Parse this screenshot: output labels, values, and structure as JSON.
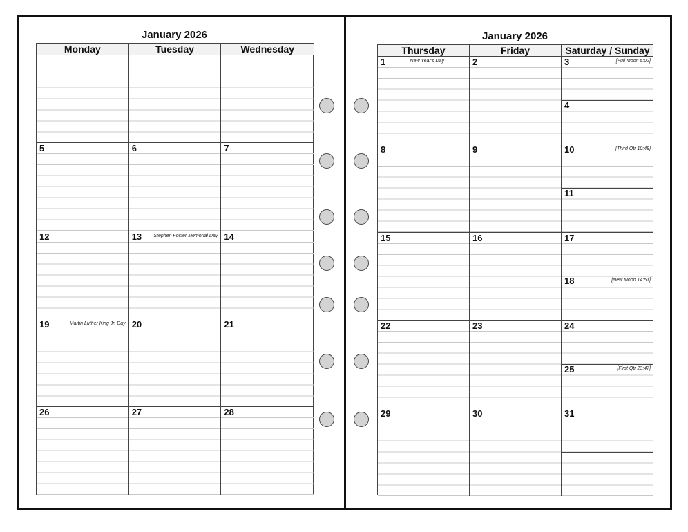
{
  "left_page": {
    "title": "January 2026",
    "days": [
      "Monday",
      "Tuesday",
      "Wednesday"
    ],
    "weeks": [
      [
        {
          "date": "",
          "note": ""
        },
        {
          "date": "",
          "note": ""
        },
        {
          "date": "",
          "note": ""
        }
      ],
      [
        {
          "date": "5",
          "note": ""
        },
        {
          "date": "6",
          "note": ""
        },
        {
          "date": "7",
          "note": ""
        }
      ],
      [
        {
          "date": "12",
          "note": ""
        },
        {
          "date": "13",
          "note": "Stephen Foster Memorial Day"
        },
        {
          "date": "14",
          "note": ""
        }
      ],
      [
        {
          "date": "19",
          "note": "Martin Luther King Jr. Day"
        },
        {
          "date": "20",
          "note": ""
        },
        {
          "date": "21",
          "note": ""
        }
      ],
      [
        {
          "date": "26",
          "note": ""
        },
        {
          "date": "27",
          "note": ""
        },
        {
          "date": "28",
          "note": ""
        }
      ]
    ]
  },
  "right_page": {
    "title": "January 2026",
    "days": [
      "Thursday",
      "Friday",
      "Saturday / Sunday"
    ],
    "weeks": [
      [
        {
          "date": "1",
          "note": "New Year's Day"
        },
        {
          "date": "2",
          "note": ""
        },
        {
          "date": "3",
          "note": "[Full Moon 5:02]",
          "sunday": {
            "date": "4",
            "note": ""
          }
        }
      ],
      [
        {
          "date": "8",
          "note": ""
        },
        {
          "date": "9",
          "note": ""
        },
        {
          "date": "10",
          "note": "[Third Qtr 10:48]",
          "sunday": {
            "date": "11",
            "note": ""
          }
        }
      ],
      [
        {
          "date": "15",
          "note": ""
        },
        {
          "date": "16",
          "note": ""
        },
        {
          "date": "17",
          "note": "",
          "sunday": {
            "date": "18",
            "note": "[New Moon 14:51]"
          }
        }
      ],
      [
        {
          "date": "22",
          "note": ""
        },
        {
          "date": "23",
          "note": ""
        },
        {
          "date": "24",
          "note": "",
          "sunday": {
            "date": "25",
            "note": "[First Qtr 23:47]"
          }
        }
      ],
      [
        {
          "date": "29",
          "note": ""
        },
        {
          "date": "30",
          "note": ""
        },
        {
          "date": "31",
          "note": "",
          "sunday": {
            "date": "",
            "note": ""
          }
        }
      ]
    ]
  },
  "binder_holes": 7
}
